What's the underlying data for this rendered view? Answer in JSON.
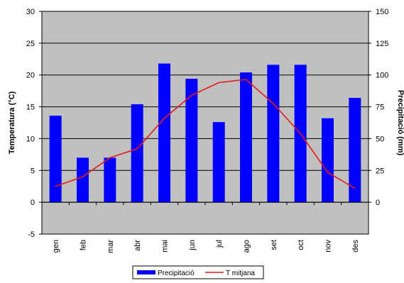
{
  "chart_data": {
    "type": "bar",
    "categories": [
      "gen",
      "feb",
      "mar",
      "abr",
      "mai",
      "jun",
      "jul",
      "ago",
      "set",
      "oct",
      "nov",
      "des"
    ],
    "series": [
      {
        "name": "Precipitació",
        "type": "bar",
        "axis": "right",
        "color": "#0000ff",
        "values": [
          68,
          35,
          35,
          77,
          109,
          97,
          63,
          102,
          108,
          108,
          66,
          82
        ]
      },
      {
        "name": "T mitjana",
        "type": "line",
        "axis": "left",
        "color": "#e31a1c",
        "values": [
          2.5,
          4.0,
          7.0,
          8.4,
          13.2,
          16.8,
          18.8,
          19.3,
          15.5,
          10.8,
          4.7,
          2.2
        ]
      }
    ],
    "ylabel": "Temperatura (°C)",
    "ylim": [
      -5,
      30
    ],
    "yticks": [
      "30",
      "25",
      "20",
      "15",
      "10",
      "5",
      "0",
      "-5"
    ],
    "y2label": "Precipitació (mm)",
    "y2lim": [
      -25,
      150
    ],
    "y2ticks": [
      "150",
      "125",
      "100",
      "75",
      "50",
      "25",
      "0"
    ],
    "grid": true,
    "plot_background": "#c0c0c0",
    "legend": {
      "position": "bottom",
      "labels": [
        "Precipitació",
        "T mitjana"
      ]
    }
  }
}
